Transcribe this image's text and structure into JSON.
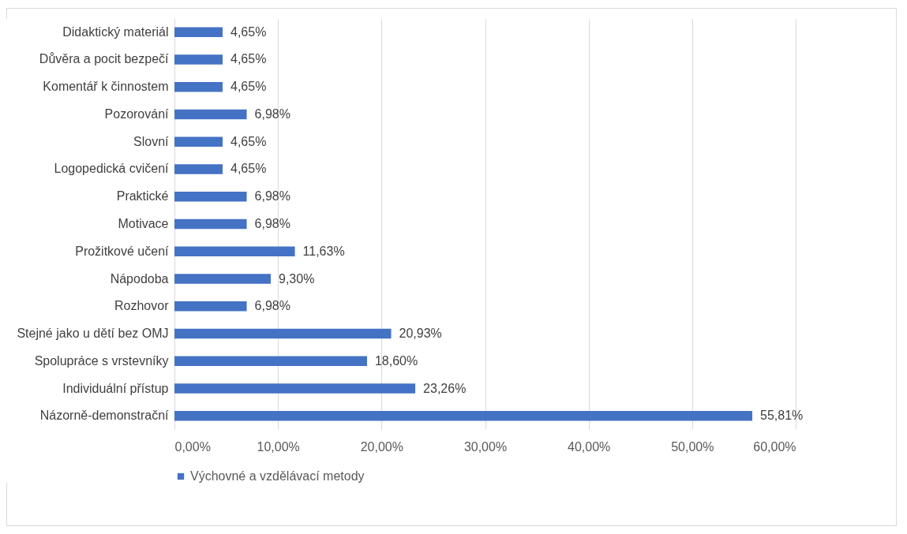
{
  "chart_data": {
    "type": "bar",
    "orientation": "horizontal",
    "categories": [
      "Didaktický materiál",
      "Důvěra a pocit bezpečí",
      "Komentář k činnostem",
      "Pozorování",
      "Slovní",
      "Logopedická cvičení",
      "Praktické",
      "Motivace",
      "Prožitkové učení",
      "Nápodoba",
      "Rozhovor",
      "Stejné jako u dětí bez OMJ",
      "Spolupráce s vrstevníky",
      "Individuální přístup",
      "Názorně-demonstrační"
    ],
    "series": [
      {
        "name": "Výchovné a vzdělávací metody",
        "color": "#4472c4",
        "values": [
          4.65,
          4.65,
          4.65,
          6.98,
          4.65,
          4.65,
          6.98,
          6.98,
          11.63,
          9.3,
          6.98,
          20.93,
          18.6,
          23.26,
          55.81
        ],
        "value_labels": [
          "4,65%",
          "4,65%",
          "4,65%",
          "6,98%",
          "4,65%",
          "4,65%",
          "6,98%",
          "6,98%",
          "11,63%",
          "9,30%",
          "6,98%",
          "20,93%",
          "18,60%",
          "23,26%",
          "55,81%"
        ]
      }
    ],
    "xlim": [
      0,
      60
    ],
    "xticks": [
      {
        "value": 0,
        "label": "0,00%"
      },
      {
        "value": 10,
        "label": "10,00%"
      },
      {
        "value": 20,
        "label": "20,00%"
      },
      {
        "value": 30,
        "label": "30,00%"
      },
      {
        "value": 40,
        "label": "40,00%"
      },
      {
        "value": 50,
        "label": "50,00%"
      },
      {
        "value": 60,
        "label": "60,00%"
      }
    ],
    "grid": "x",
    "legend": "bottom"
  }
}
